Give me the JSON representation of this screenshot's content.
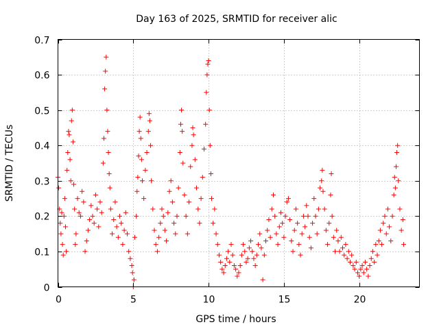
{
  "chart_data": {
    "type": "scatter",
    "title": "Day 163 of 2025, SRMTID for receiver alic",
    "xlabel": "GPS time / hours",
    "ylabel": "SRMTID / TECUs",
    "xlim": [
      0,
      24
    ],
    "ylim": [
      0,
      0.7
    ],
    "xticks": [
      0,
      5,
      10,
      15,
      20
    ],
    "yticks": [
      0,
      0.1,
      0.2,
      0.3,
      0.4,
      0.5,
      0.6,
      0.7
    ],
    "xtick_labels": [
      "0",
      "5",
      "10",
      "15",
      "20"
    ],
    "ytick_labels": [
      "0",
      "0.1",
      "0.2",
      "0.3",
      "0.4",
      "0.5",
      "0.6",
      "0.7"
    ],
    "grid": true,
    "marker": "+",
    "color": "#ff0000",
    "series": [
      {
        "name": "SRMTID",
        "points": [
          [
            0.0,
            0.31
          ],
          [
            0.05,
            0.28
          ],
          [
            0.1,
            0.22
          ],
          [
            0.15,
            0.18
          ],
          [
            0.2,
            0.15
          ],
          [
            0.25,
            0.21
          ],
          [
            0.3,
            0.12
          ],
          [
            0.35,
            0.09
          ],
          [
            0.4,
            0.2
          ],
          [
            0.45,
            0.25
          ],
          [
            0.5,
            0.17
          ],
          [
            0.55,
            0.1
          ],
          [
            0.6,
            0.33
          ],
          [
            0.65,
            0.38
          ],
          [
            0.7,
            0.44
          ],
          [
            0.75,
            0.43
          ],
          [
            0.8,
            0.36
          ],
          [
            0.85,
            0.3
          ],
          [
            0.9,
            0.47
          ],
          [
            0.95,
            0.5
          ],
          [
            1.0,
            0.41
          ],
          [
            1.05,
            0.29
          ],
          [
            1.1,
            0.22
          ],
          [
            1.15,
            0.12
          ],
          [
            1.2,
            0.15
          ],
          [
            1.3,
            0.25
          ],
          [
            1.4,
            0.21
          ],
          [
            1.5,
            0.2
          ],
          [
            1.6,
            0.27
          ],
          [
            1.7,
            0.24
          ],
          [
            1.8,
            0.1
          ],
          [
            1.9,
            0.13
          ],
          [
            2.0,
            0.16
          ],
          [
            2.1,
            0.19
          ],
          [
            2.2,
            0.23
          ],
          [
            2.3,
            0.2
          ],
          [
            2.4,
            0.18
          ],
          [
            2.5,
            0.26
          ],
          [
            2.6,
            0.22
          ],
          [
            2.7,
            0.17
          ],
          [
            2.8,
            0.24
          ],
          [
            2.9,
            0.21
          ],
          [
            3.0,
            0.35
          ],
          [
            3.05,
            0.42
          ],
          [
            3.1,
            0.56
          ],
          [
            3.15,
            0.61
          ],
          [
            3.2,
            0.65
          ],
          [
            3.25,
            0.5
          ],
          [
            3.3,
            0.44
          ],
          [
            3.35,
            0.38
          ],
          [
            3.4,
            0.32
          ],
          [
            3.45,
            0.28
          ],
          [
            3.5,
            0.22
          ],
          [
            3.6,
            0.15
          ],
          [
            3.7,
            0.19
          ],
          [
            3.8,
            0.24
          ],
          [
            3.9,
            0.17
          ],
          [
            4.0,
            0.14
          ],
          [
            4.1,
            0.2
          ],
          [
            4.2,
            0.18
          ],
          [
            4.3,
            0.12
          ],
          [
            4.4,
            0.16
          ],
          [
            4.5,
            0.21
          ],
          [
            4.6,
            0.15
          ],
          [
            4.7,
            0.1
          ],
          [
            4.8,
            0.08
          ],
          [
            4.9,
            0.06
          ],
          [
            4.95,
            0.04
          ],
          [
            5.0,
            0.0
          ],
          [
            5.05,
            0.02
          ],
          [
            5.1,
            0.14
          ],
          [
            5.2,
            0.2
          ],
          [
            5.25,
            0.27
          ],
          [
            5.3,
            0.31
          ],
          [
            5.35,
            0.37
          ],
          [
            5.4,
            0.44
          ],
          [
            5.45,
            0.48
          ],
          [
            5.5,
            0.42
          ],
          [
            5.55,
            0.36
          ],
          [
            5.6,
            0.3
          ],
          [
            5.7,
            0.25
          ],
          [
            5.8,
            0.33
          ],
          [
            5.9,
            0.38
          ],
          [
            6.0,
            0.44
          ],
          [
            6.05,
            0.49
          ],
          [
            6.1,
            0.47
          ],
          [
            6.15,
            0.4
          ],
          [
            6.2,
            0.3
          ],
          [
            6.3,
            0.22
          ],
          [
            6.4,
            0.16
          ],
          [
            6.5,
            0.12
          ],
          [
            6.6,
            0.1
          ],
          [
            6.7,
            0.14
          ],
          [
            6.8,
            0.18
          ],
          [
            6.9,
            0.22
          ],
          [
            7.0,
            0.2
          ],
          [
            7.1,
            0.16
          ],
          [
            7.2,
            0.13
          ],
          [
            7.3,
            0.21
          ],
          [
            7.4,
            0.27
          ],
          [
            7.5,
            0.3
          ],
          [
            7.6,
            0.24
          ],
          [
            7.7,
            0.18
          ],
          [
            7.8,
            0.15
          ],
          [
            7.9,
            0.2
          ],
          [
            8.0,
            0.28
          ],
          [
            8.1,
            0.38
          ],
          [
            8.15,
            0.46
          ],
          [
            8.2,
            0.5
          ],
          [
            8.25,
            0.44
          ],
          [
            8.3,
            0.35
          ],
          [
            8.4,
            0.26
          ],
          [
            8.5,
            0.2
          ],
          [
            8.6,
            0.15
          ],
          [
            8.7,
            0.24
          ],
          [
            8.8,
            0.34
          ],
          [
            8.9,
            0.4
          ],
          [
            8.95,
            0.45
          ],
          [
            9.0,
            0.43
          ],
          [
            9.1,
            0.36
          ],
          [
            9.2,
            0.28
          ],
          [
            9.3,
            0.22
          ],
          [
            9.4,
            0.18
          ],
          [
            9.5,
            0.25
          ],
          [
            9.6,
            0.31
          ],
          [
            9.7,
            0.39
          ],
          [
            9.8,
            0.46
          ],
          [
            9.85,
            0.55
          ],
          [
            9.9,
            0.6
          ],
          [
            9.95,
            0.63
          ],
          [
            10.0,
            0.64
          ],
          [
            10.05,
            0.5
          ],
          [
            10.1,
            0.4
          ],
          [
            10.15,
            0.32
          ],
          [
            10.2,
            0.25
          ],
          [
            10.3,
            0.18
          ],
          [
            10.4,
            0.22
          ],
          [
            10.5,
            0.15
          ],
          [
            10.6,
            0.12
          ],
          [
            10.7,
            0.09
          ],
          [
            10.8,
            0.07
          ],
          [
            10.9,
            0.05
          ],
          [
            11.0,
            0.04
          ],
          [
            11.1,
            0.06
          ],
          [
            11.2,
            0.08
          ],
          [
            11.3,
            0.1
          ],
          [
            11.4,
            0.07
          ],
          [
            11.5,
            0.12
          ],
          [
            11.6,
            0.09
          ],
          [
            11.7,
            0.06
          ],
          [
            11.8,
            0.05
          ],
          [
            11.9,
            0.03
          ],
          [
            12.0,
            0.04
          ],
          [
            12.1,
            0.06
          ],
          [
            12.2,
            0.09
          ],
          [
            12.3,
            0.12
          ],
          [
            12.4,
            0.1
          ],
          [
            12.5,
            0.07
          ],
          [
            12.6,
            0.08
          ],
          [
            12.7,
            0.11
          ],
          [
            12.8,
            0.13
          ],
          [
            12.9,
            0.1
          ],
          [
            13.0,
            0.08
          ],
          [
            13.1,
            0.06
          ],
          [
            13.2,
            0.09
          ],
          [
            13.3,
            0.12
          ],
          [
            13.4,
            0.15
          ],
          [
            13.5,
            0.11
          ],
          [
            13.6,
            0.02
          ],
          [
            13.7,
            0.09
          ],
          [
            13.8,
            0.13
          ],
          [
            13.9,
            0.16
          ],
          [
            14.0,
            0.19
          ],
          [
            14.1,
            0.14
          ],
          [
            14.2,
            0.22
          ],
          [
            14.3,
            0.26
          ],
          [
            14.4,
            0.2
          ],
          [
            14.5,
            0.15
          ],
          [
            14.6,
            0.12
          ],
          [
            14.7,
            0.17
          ],
          [
            14.8,
            0.21
          ],
          [
            14.9,
            0.18
          ],
          [
            15.0,
            0.14
          ],
          [
            15.1,
            0.2
          ],
          [
            15.2,
            0.24
          ],
          [
            15.3,
            0.25
          ],
          [
            15.4,
            0.19
          ],
          [
            15.5,
            0.13
          ],
          [
            15.6,
            0.1
          ],
          [
            15.7,
            0.16
          ],
          [
            15.8,
            0.22
          ],
          [
            15.9,
            0.18
          ],
          [
            16.0,
            0.12
          ],
          [
            16.1,
            0.09
          ],
          [
            16.2,
            0.15
          ],
          [
            16.3,
            0.2
          ],
          [
            16.4,
            0.17
          ],
          [
            16.5,
            0.23
          ],
          [
            16.6,
            0.2
          ],
          [
            16.7,
            0.14
          ],
          [
            16.8,
            0.11
          ],
          [
            16.9,
            0.18
          ],
          [
            17.0,
            0.25
          ],
          [
            17.1,
            0.2
          ],
          [
            17.2,
            0.15
          ],
          [
            17.3,
            0.22
          ],
          [
            17.4,
            0.28
          ],
          [
            17.5,
            0.3
          ],
          [
            17.55,
            0.33
          ],
          [
            17.6,
            0.27
          ],
          [
            17.7,
            0.22
          ],
          [
            17.8,
            0.16
          ],
          [
            17.9,
            0.12
          ],
          [
            18.0,
            0.18
          ],
          [
            18.1,
            0.26
          ],
          [
            18.15,
            0.32
          ],
          [
            18.2,
            0.2
          ],
          [
            18.3,
            0.14
          ],
          [
            18.4,
            0.1
          ],
          [
            18.5,
            0.16
          ],
          [
            18.6,
            0.13
          ],
          [
            18.7,
            0.1
          ],
          [
            18.8,
            0.14
          ],
          [
            18.9,
            0.11
          ],
          [
            19.0,
            0.09
          ],
          [
            19.1,
            0.12
          ],
          [
            19.2,
            0.08
          ],
          [
            19.3,
            0.1
          ],
          [
            19.4,
            0.07
          ],
          [
            19.5,
            0.09
          ],
          [
            19.6,
            0.06
          ],
          [
            19.7,
            0.05
          ],
          [
            19.8,
            0.07
          ],
          [
            19.9,
            0.04
          ],
          [
            20.0,
            0.03
          ],
          [
            20.1,
            0.05
          ],
          [
            20.2,
            0.06
          ],
          [
            20.3,
            0.04
          ],
          [
            20.4,
            0.07
          ],
          [
            20.5,
            0.05
          ],
          [
            20.6,
            0.03
          ],
          [
            20.7,
            0.06
          ],
          [
            20.8,
            0.08
          ],
          [
            20.9,
            0.1
          ],
          [
            21.0,
            0.07
          ],
          [
            21.1,
            0.12
          ],
          [
            21.2,
            0.09
          ],
          [
            21.3,
            0.13
          ],
          [
            21.4,
            0.16
          ],
          [
            21.5,
            0.12
          ],
          [
            21.6,
            0.18
          ],
          [
            21.7,
            0.2
          ],
          [
            21.8,
            0.15
          ],
          [
            21.9,
            0.22
          ],
          [
            22.0,
            0.17
          ],
          [
            22.1,
            0.13
          ],
          [
            22.2,
            0.2
          ],
          [
            22.3,
            0.26
          ],
          [
            22.35,
            0.31
          ],
          [
            22.4,
            0.28
          ],
          [
            22.45,
            0.34
          ],
          [
            22.5,
            0.38
          ],
          [
            22.55,
            0.4
          ],
          [
            22.6,
            0.3
          ],
          [
            22.7,
            0.22
          ],
          [
            22.8,
            0.16
          ],
          [
            22.9,
            0.19
          ],
          [
            22.95,
            0.12
          ]
        ]
      }
    ]
  }
}
